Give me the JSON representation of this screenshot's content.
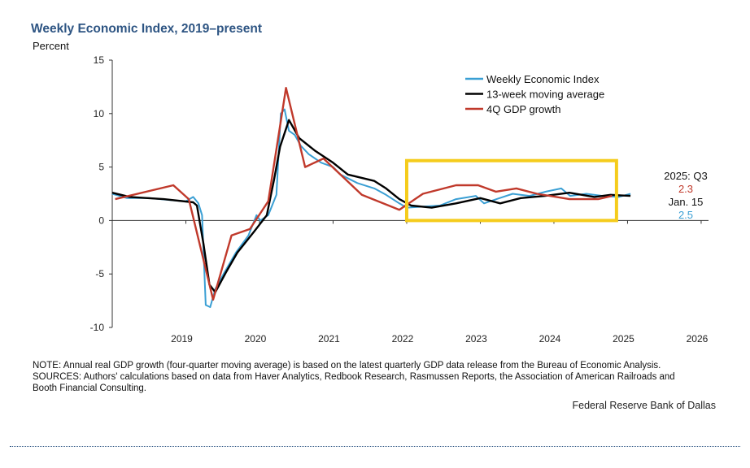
{
  "chart_data": {
    "type": "line",
    "title": "Weekly Economic Index, 2019–present",
    "ylabel": "Percent",
    "xlabel": "",
    "ylim": [
      -10,
      15
    ],
    "yticks": [
      -10,
      -5,
      0,
      5,
      10,
      15
    ],
    "xlim": [
      2019.0,
      2027.1
    ],
    "xtick_labels": [
      "2019",
      "2020",
      "2021",
      "2022",
      "2023",
      "2024",
      "2025",
      "2026"
    ],
    "legend": "top-right",
    "series": [
      {
        "name": "Weekly Economic Index",
        "color": "#3a9fd4",
        "points": [
          [
            2019.0,
            2.5
          ],
          [
            2019.2,
            2.1
          ],
          [
            2019.5,
            2.1
          ],
          [
            2019.8,
            1.9
          ],
          [
            2020.0,
            1.8
          ],
          [
            2020.1,
            2.2
          ],
          [
            2020.17,
            1.6
          ],
          [
            2020.22,
            0.5
          ],
          [
            2020.27,
            -7.9
          ],
          [
            2020.33,
            -8.1
          ],
          [
            2020.4,
            -6.4
          ],
          [
            2020.52,
            -4.9
          ],
          [
            2020.68,
            -3.0
          ],
          [
            2020.85,
            -1.4
          ],
          [
            2020.96,
            0.5
          ],
          [
            2021.01,
            0.0
          ],
          [
            2021.12,
            0.5
          ],
          [
            2021.23,
            2.4
          ],
          [
            2021.29,
            10.0
          ],
          [
            2021.34,
            10.4
          ],
          [
            2021.4,
            8.4
          ],
          [
            2021.48,
            8.0
          ],
          [
            2021.56,
            7.0
          ],
          [
            2021.67,
            6.2
          ],
          [
            2021.84,
            5.4
          ],
          [
            2022.0,
            5.0
          ],
          [
            2022.1,
            4.3
          ],
          [
            2022.33,
            3.5
          ],
          [
            2022.56,
            3.0
          ],
          [
            2022.72,
            2.4
          ],
          [
            2022.9,
            1.6
          ],
          [
            2023.0,
            1.2
          ],
          [
            2023.22,
            1.3
          ],
          [
            2023.45,
            1.4
          ],
          [
            2023.67,
            2.0
          ],
          [
            2023.94,
            2.3
          ],
          [
            2024.05,
            1.6
          ],
          [
            2024.22,
            2.0
          ],
          [
            2024.44,
            2.5
          ],
          [
            2024.67,
            2.3
          ],
          [
            2024.89,
            2.7
          ],
          [
            2025.1,
            3.0
          ],
          [
            2025.22,
            2.3
          ],
          [
            2025.44,
            2.5
          ],
          [
            2025.66,
            2.3
          ],
          [
            2025.88,
            2.2
          ],
          [
            2026.04,
            2.5
          ]
        ]
      },
      {
        "name": "13-week moving average",
        "color": "#000000",
        "points": [
          [
            2019.0,
            2.6
          ],
          [
            2019.24,
            2.2
          ],
          [
            2019.7,
            2.0
          ],
          [
            2020.1,
            1.7
          ],
          [
            2020.15,
            1.4
          ],
          [
            2020.24,
            -2.2
          ],
          [
            2020.32,
            -6.0
          ],
          [
            2020.4,
            -6.7
          ],
          [
            2020.54,
            -4.9
          ],
          [
            2020.7,
            -3.0
          ],
          [
            2020.93,
            -1.0
          ],
          [
            2021.1,
            0.5
          ],
          [
            2021.2,
            3.9
          ],
          [
            2021.28,
            6.9
          ],
          [
            2021.4,
            9.4
          ],
          [
            2021.54,
            7.7
          ],
          [
            2021.76,
            6.5
          ],
          [
            2022.0,
            5.4
          ],
          [
            2022.2,
            4.3
          ],
          [
            2022.56,
            3.7
          ],
          [
            2022.72,
            3.0
          ],
          [
            2022.9,
            2.0
          ],
          [
            2023.06,
            1.4
          ],
          [
            2023.34,
            1.2
          ],
          [
            2023.67,
            1.6
          ],
          [
            2024.0,
            2.1
          ],
          [
            2024.27,
            1.6
          ],
          [
            2024.55,
            2.1
          ],
          [
            2024.88,
            2.3
          ],
          [
            2025.21,
            2.6
          ],
          [
            2025.55,
            2.2
          ],
          [
            2025.77,
            2.4
          ],
          [
            2026.04,
            2.3
          ]
        ]
      },
      {
        "name": "4Q GDP growth",
        "color": "#c0392b",
        "points": [
          [
            2019.04,
            2.0
          ],
          [
            2019.83,
            3.3
          ],
          [
            2020.04,
            2.0
          ],
          [
            2020.37,
            -7.4
          ],
          [
            2020.62,
            -1.4
          ],
          [
            2020.87,
            -0.8
          ],
          [
            2021.12,
            1.8
          ],
          [
            2021.36,
            12.4
          ],
          [
            2021.62,
            5.0
          ],
          [
            2021.87,
            5.8
          ],
          [
            2022.39,
            2.4
          ],
          [
            2022.9,
            1.0
          ],
          [
            2023.22,
            2.5
          ],
          [
            2023.67,
            3.3
          ],
          [
            2023.97,
            3.3
          ],
          [
            2024.21,
            2.7
          ],
          [
            2024.49,
            3.0
          ],
          [
            2024.77,
            2.5
          ],
          [
            2025.21,
            2.0
          ],
          [
            2025.6,
            2.0
          ],
          [
            2025.79,
            2.3
          ]
        ]
      }
    ],
    "annotations": {
      "gdp_period": "2025: Q3",
      "gdp_value": "2.3",
      "wei_date": "Jan. 15",
      "wei_value": "2.5"
    },
    "highlight_box": {
      "x_range": [
        2023.0,
        2025.85
      ],
      "y_range": [
        0,
        5.6
      ],
      "color": "#f5cc1c"
    }
  },
  "note": "NOTE: Annual real GDP growth (four-quarter moving average) is based on the latest quarterly GDP data release from the Bureau of Economic Analysis.",
  "sources": "SOURCES: Authors' calculations based on data from Haver Analytics, Redbook Research, Rasmussen Reports, the Association of American Railroads and Booth Financial Consulting.",
  "credit": "Federal Reserve Bank of Dallas"
}
